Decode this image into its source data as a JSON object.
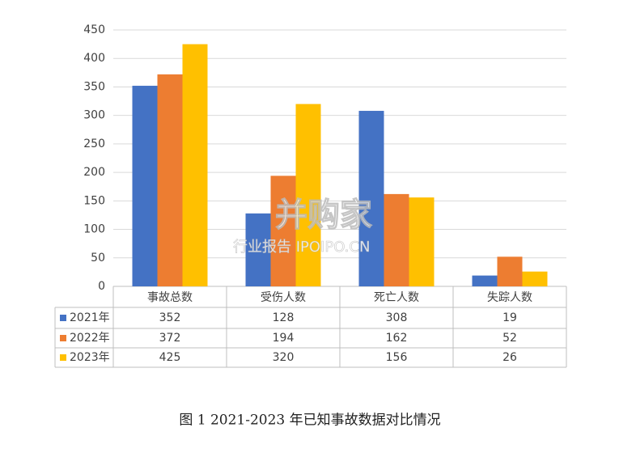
{
  "chart_data": {
    "type": "bar",
    "categories": [
      "事故总数",
      "受伤人数",
      "死亡人数",
      "失踪人数"
    ],
    "series": [
      {
        "name": "2021年",
        "color": "#4472c4",
        "values": [
          352,
          128,
          308,
          19
        ]
      },
      {
        "name": "2022年",
        "color": "#ed7d31",
        "values": [
          372,
          194,
          162,
          52
        ]
      },
      {
        "name": "2023年",
        "color": "#ffc000",
        "values": [
          425,
          320,
          156,
          26
        ]
      }
    ],
    "ylim": [
      0,
      450
    ],
    "yticks": [
      0,
      50,
      100,
      150,
      200,
      250,
      300,
      350,
      400,
      450
    ],
    "grid": true,
    "caption": "图 1 2021-2023 年已知事故数据对比情况",
    "watermark": {
      "brand": "并购家",
      "sub": "行业报告 IPOIPO.CN"
    }
  }
}
